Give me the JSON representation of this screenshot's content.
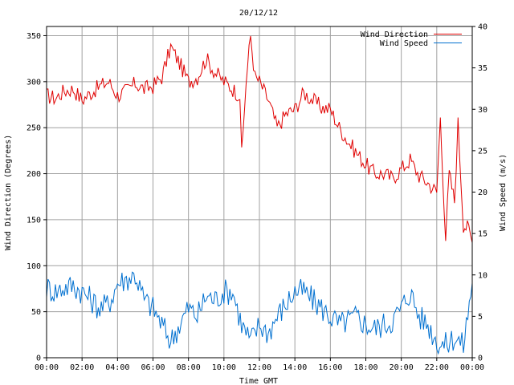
{
  "chart_data": {
    "type": "line",
    "title": "20/12/12",
    "xlabel": "Time GMT",
    "ylabel_left": "Wind Direction (Degrees)",
    "ylabel_right": "Wind Speed (m/s)",
    "x_range_hours": [
      0,
      24
    ],
    "x_tick_labels": [
      "00:00",
      "02:00",
      "04:00",
      "06:00",
      "08:00",
      "10:00",
      "12:00",
      "14:00",
      "16:00",
      "18:00",
      "20:00",
      "22:00",
      "00:00"
    ],
    "ylim_left": [
      0,
      360
    ],
    "y_ticks_left": [
      0,
      50,
      100,
      150,
      200,
      250,
      300,
      350
    ],
    "ylim_right": [
      0,
      40
    ],
    "y_ticks_right": [
      0,
      5,
      10,
      15,
      20,
      25,
      30,
      35,
      40
    ],
    "grid": true,
    "legend_position": "top-right",
    "series": [
      {
        "name": "Wind Direction",
        "color": "#e00000",
        "axis": "left",
        "x": [
          0,
          0.5,
          1,
          1.5,
          2,
          2.5,
          3,
          3.5,
          4,
          4.5,
          5,
          5.5,
          6,
          6.5,
          7,
          7.5,
          8,
          8.5,
          9,
          9.5,
          10,
          10.5,
          10.9,
          11,
          11.25,
          11.5,
          11.75,
          12,
          12.5,
          13,
          13.5,
          14,
          14.5,
          15,
          15.5,
          16,
          16.5,
          17,
          17.5,
          18,
          18.5,
          19,
          19.5,
          20,
          20.5,
          21,
          21.5,
          22,
          22.2,
          22.5,
          22.7,
          23,
          23.2,
          23.5,
          23.8,
          24
        ],
        "values": [
          285,
          282,
          290,
          292,
          280,
          288,
          295,
          300,
          285,
          290,
          298,
          292,
          295,
          305,
          338,
          320,
          300,
          305,
          325,
          310,
          300,
          292,
          285,
          220,
          300,
          350,
          305,
          300,
          280,
          250,
          265,
          270,
          288,
          280,
          272,
          270,
          250,
          235,
          222,
          210,
          200,
          200,
          195,
          205,
          215,
          198,
          190,
          180,
          260,
          130,
          200,
          170,
          255,
          145,
          140,
          125
        ]
      },
      {
        "name": "Wind Speed",
        "color": "#0070d0",
        "axis": "right",
        "x": [
          0,
          0.5,
          1,
          1.5,
          2,
          2.5,
          3,
          3.5,
          4,
          4.5,
          5,
          5.5,
          6,
          6.5,
          7,
          7.5,
          8,
          8.5,
          9,
          9.5,
          10,
          10.5,
          11,
          11.5,
          12,
          12.5,
          13,
          13.5,
          14,
          14.5,
          15,
          15.5,
          16,
          16.5,
          17,
          17.5,
          18,
          18.5,
          19,
          19.5,
          20,
          20.5,
          21,
          21.5,
          22,
          22.5,
          23,
          23.5,
          24
        ],
        "values": [
          8.5,
          8,
          8.5,
          8.7,
          8,
          7,
          6,
          6.5,
          9,
          9.5,
          10,
          7,
          6,
          4,
          2,
          4,
          6,
          5,
          7.5,
          7,
          8,
          8,
          4,
          2,
          4,
          3,
          5,
          6.5,
          8,
          8,
          7,
          6,
          5,
          4,
          4.5,
          5,
          4,
          3.5,
          4,
          4.5,
          6,
          8,
          5,
          4,
          2,
          1.5,
          2.5,
          1.5,
          9
        ]
      }
    ]
  }
}
